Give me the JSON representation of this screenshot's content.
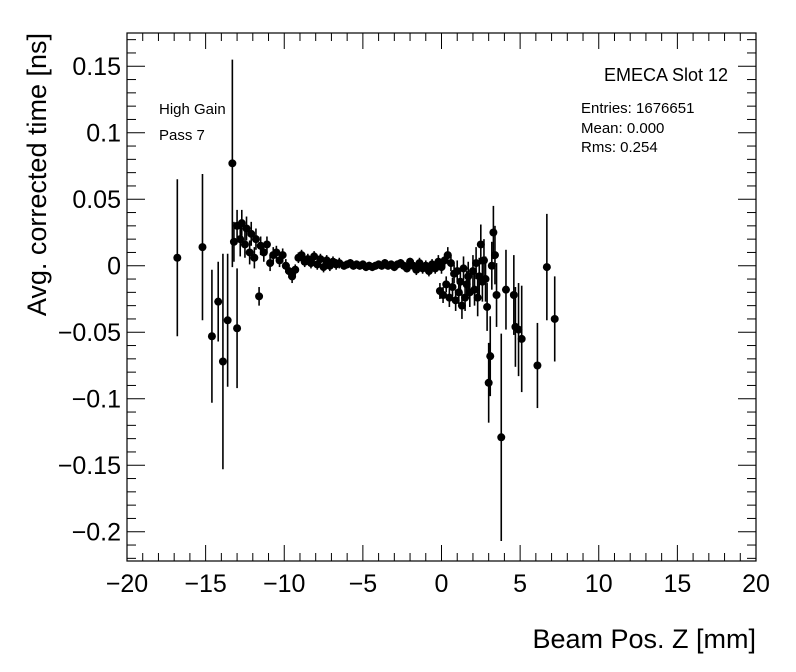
{
  "chart_data": {
    "type": "scatter",
    "title": "EMECA Slot 12",
    "xlabel": "Beam Pos. Z [mm]",
    "ylabel": "Avg. corrected time [ns]",
    "xlim": [
      -20,
      20
    ],
    "ylim": [
      -0.222,
      0.175
    ],
    "x_ticks": [
      -20,
      -15,
      -10,
      -5,
      0,
      5,
      10,
      15,
      20
    ],
    "x_tick_labels": [
      "−20",
      "−15",
      "−10",
      "−5",
      "0",
      "5",
      "10",
      "15",
      "20"
    ],
    "y_ticks": [
      -0.2,
      -0.15,
      -0.1,
      -0.05,
      0,
      0.05,
      0.1,
      0.15
    ],
    "y_tick_labels": [
      "−0.2",
      "−0.15",
      "−0.1",
      "−0.05",
      "0",
      "0.05",
      "0.1",
      "0.15"
    ],
    "grid": false,
    "annotations": [
      "High Gain",
      "Pass 7"
    ],
    "stats": [
      "Entries: 1676651",
      "Mean: 0.000",
      "Rms: 0.254"
    ],
    "points": [
      {
        "x": -16.8,
        "y": 0.006,
        "err": 0.059
      },
      {
        "x": -15.2,
        "y": 0.014,
        "err": 0.055
      },
      {
        "x": -14.6,
        "y": -0.053,
        "err": 0.05
      },
      {
        "x": -14.2,
        "y": -0.027,
        "err": 0.03
      },
      {
        "x": -13.9,
        "y": -0.072,
        "err": 0.081
      },
      {
        "x": -13.6,
        "y": -0.041,
        "err": 0.05
      },
      {
        "x": -13.3,
        "y": 0.077,
        "err": 0.078
      },
      {
        "x": -13.2,
        "y": 0.018,
        "err": 0.015
      },
      {
        "x": -13.0,
        "y": -0.047,
        "err": 0.045
      },
      {
        "x": -13.0,
        "y": 0.03,
        "err": 0.012
      },
      {
        "x": -12.8,
        "y": 0.02,
        "err": 0.013
      },
      {
        "x": -12.7,
        "y": 0.032,
        "err": 0.01
      },
      {
        "x": -12.5,
        "y": 0.016,
        "err": 0.01
      },
      {
        "x": -12.4,
        "y": 0.028,
        "err": 0.009
      },
      {
        "x": -12.2,
        "y": 0.01,
        "err": 0.009
      },
      {
        "x": -12.1,
        "y": 0.024,
        "err": 0.009
      },
      {
        "x": -11.9,
        "y": 0.006,
        "err": 0.008
      },
      {
        "x": -11.8,
        "y": 0.02,
        "err": 0.008
      },
      {
        "x": -11.6,
        "y": -0.023,
        "err": 0.007
      },
      {
        "x": -11.5,
        "y": 0.015,
        "err": 0.007
      },
      {
        "x": -11.3,
        "y": 0.01,
        "err": 0.007
      },
      {
        "x": -11.1,
        "y": 0.016,
        "err": 0.006
      },
      {
        "x": -10.9,
        "y": 0.002,
        "err": 0.006
      },
      {
        "x": -10.7,
        "y": 0.008,
        "err": 0.006
      },
      {
        "x": -10.5,
        "y": 0.01,
        "err": 0.005
      },
      {
        "x": -10.3,
        "y": 0.004,
        "err": 0.005
      },
      {
        "x": -10.1,
        "y": 0.008,
        "err": 0.005
      },
      {
        "x": -9.9,
        "y": 0.0,
        "err": 0.005
      },
      {
        "x": -9.7,
        "y": -0.004,
        "err": 0.005
      },
      {
        "x": -9.5,
        "y": -0.008,
        "err": 0.005
      },
      {
        "x": -9.3,
        "y": -0.003,
        "err": 0.004
      },
      {
        "x": -9.1,
        "y": 0.006,
        "err": 0.004
      },
      {
        "x": -8.9,
        "y": 0.008,
        "err": 0.004
      },
      {
        "x": -8.7,
        "y": 0.003,
        "err": 0.004
      },
      {
        "x": -8.5,
        "y": 0.005,
        "err": 0.004
      },
      {
        "x": -8.3,
        "y": 0.002,
        "err": 0.004
      },
      {
        "x": -8.1,
        "y": 0.007,
        "err": 0.004
      },
      {
        "x": -7.9,
        "y": 0.001,
        "err": 0.004
      },
      {
        "x": -7.7,
        "y": 0.005,
        "err": 0.004
      },
      {
        "x": -7.5,
        "y": -0.001,
        "err": 0.004
      },
      {
        "x": -7.3,
        "y": 0.004,
        "err": 0.004
      },
      {
        "x": -7.1,
        "y": 0.0,
        "err": 0.004
      },
      {
        "x": -6.9,
        "y": 0.003,
        "err": 0.004
      },
      {
        "x": -6.7,
        "y": 0.001,
        "err": 0.004
      },
      {
        "x": -6.5,
        "y": 0.002,
        "err": 0.004
      },
      {
        "x": -6.2,
        "y": 0.0,
        "err": 0.003
      },
      {
        "x": -6.0,
        "y": 0.001,
        "err": 0.003
      },
      {
        "x": -5.8,
        "y": 0.002,
        "err": 0.003
      },
      {
        "x": -5.6,
        "y": 0.0,
        "err": 0.003
      },
      {
        "x": -5.4,
        "y": 0.001,
        "err": 0.003
      },
      {
        "x": -5.2,
        "y": 0.0,
        "err": 0.003
      },
      {
        "x": -5.0,
        "y": 0.001,
        "err": 0.003
      },
      {
        "x": -4.8,
        "y": -0.001,
        "err": 0.003
      },
      {
        "x": -4.6,
        "y": 0.0,
        "err": 0.003
      },
      {
        "x": -4.4,
        "y": -0.001,
        "err": 0.003
      },
      {
        "x": -4.2,
        "y": 0.0,
        "err": 0.003
      },
      {
        "x": -4.0,
        "y": 0.001,
        "err": 0.003
      },
      {
        "x": -3.8,
        "y": 0.0,
        "err": 0.003
      },
      {
        "x": -3.6,
        "y": 0.002,
        "err": 0.003
      },
      {
        "x": -3.4,
        "y": 0.0,
        "err": 0.003
      },
      {
        "x": -3.2,
        "y": 0.001,
        "err": 0.003
      },
      {
        "x": -3.0,
        "y": -0.001,
        "err": 0.003
      },
      {
        "x": -2.8,
        "y": 0.001,
        "err": 0.003
      },
      {
        "x": -2.6,
        "y": 0.002,
        "err": 0.003
      },
      {
        "x": -2.4,
        "y": 0.0,
        "err": 0.003
      },
      {
        "x": -2.2,
        "y": -0.002,
        "err": 0.003
      },
      {
        "x": -2.0,
        "y": 0.003,
        "err": 0.003
      },
      {
        "x": -1.8,
        "y": 0.0,
        "err": 0.004
      },
      {
        "x": -1.6,
        "y": -0.003,
        "err": 0.004
      },
      {
        "x": -1.4,
        "y": 0.002,
        "err": 0.004
      },
      {
        "x": -1.2,
        "y": -0.002,
        "err": 0.004
      },
      {
        "x": -1.0,
        "y": 0.0,
        "err": 0.004
      },
      {
        "x": -0.8,
        "y": -0.004,
        "err": 0.004
      },
      {
        "x": -0.6,
        "y": 0.001,
        "err": 0.004
      },
      {
        "x": -0.4,
        "y": -0.002,
        "err": 0.004
      },
      {
        "x": -0.2,
        "y": 0.003,
        "err": 0.005
      },
      {
        "x": 0.0,
        "y": -0.001,
        "err": 0.005
      },
      {
        "x": -0.1,
        "y": -0.019,
        "err": 0.006
      },
      {
        "x": 0.1,
        "y": -0.022,
        "err": 0.006
      },
      {
        "x": 0.3,
        "y": -0.014,
        "err": 0.006
      },
      {
        "x": 0.2,
        "y": 0.004,
        "err": 0.005
      },
      {
        "x": 0.4,
        "y": 0.008,
        "err": 0.006
      },
      {
        "x": 0.5,
        "y": -0.024,
        "err": 0.007
      },
      {
        "x": 0.6,
        "y": 0.002,
        "err": 0.006
      },
      {
        "x": 0.7,
        "y": -0.016,
        "err": 0.007
      },
      {
        "x": 0.8,
        "y": -0.006,
        "err": 0.007
      },
      {
        "x": 0.9,
        "y": -0.026,
        "err": 0.008
      },
      {
        "x": 1.0,
        "y": -0.004,
        "err": 0.008
      },
      {
        "x": 1.1,
        "y": -0.02,
        "err": 0.009
      },
      {
        "x": 1.2,
        "y": -0.012,
        "err": 0.009
      },
      {
        "x": 1.3,
        "y": -0.03,
        "err": 0.01
      },
      {
        "x": 1.4,
        "y": -0.002,
        "err": 0.009
      },
      {
        "x": 1.5,
        "y": -0.024,
        "err": 0.01
      },
      {
        "x": 1.6,
        "y": -0.014,
        "err": 0.01
      },
      {
        "x": 1.7,
        "y": -0.008,
        "err": 0.011
      },
      {
        "x": 1.8,
        "y": -0.02,
        "err": 0.011
      },
      {
        "x": 2.0,
        "y": -0.004,
        "err": 0.012
      },
      {
        "x": 2.1,
        "y": -0.018,
        "err": 0.012
      },
      {
        "x": 2.2,
        "y": 0.002,
        "err": 0.012
      },
      {
        "x": 2.3,
        "y": -0.024,
        "err": 0.014
      },
      {
        "x": 2.4,
        "y": -0.008,
        "err": 0.014
      },
      {
        "x": 2.5,
        "y": 0.016,
        "err": 0.015
      },
      {
        "x": 2.6,
        "y": -0.012,
        "err": 0.015
      },
      {
        "x": 2.7,
        "y": 0.004,
        "err": 0.016
      },
      {
        "x": 2.8,
        "y": -0.01,
        "err": 0.017
      },
      {
        "x": 2.9,
        "y": -0.031,
        "err": 0.018
      },
      {
        "x": 3.0,
        "y": -0.088,
        "err": 0.03
      },
      {
        "x": 3.1,
        "y": -0.068,
        "err": 0.03
      },
      {
        "x": 3.2,
        "y": 0.0,
        "err": 0.018
      },
      {
        "x": 3.3,
        "y": 0.025,
        "err": 0.02
      },
      {
        "x": 3.4,
        "y": 0.008,
        "err": 0.022
      },
      {
        "x": 3.5,
        "y": -0.022,
        "err": 0.024
      },
      {
        "x": 3.8,
        "y": -0.129,
        "err": 0.078
      },
      {
        "x": 4.1,
        "y": -0.018,
        "err": 0.03
      },
      {
        "x": 4.6,
        "y": -0.022,
        "err": 0.03
      },
      {
        "x": 4.7,
        "y": -0.046,
        "err": 0.03
      },
      {
        "x": 4.9,
        "y": -0.048,
        "err": 0.035
      },
      {
        "x": 5.1,
        "y": -0.055,
        "err": 0.04
      },
      {
        "x": 6.1,
        "y": -0.075,
        "err": 0.032
      },
      {
        "x": 6.7,
        "y": -0.001,
        "err": 0.04
      },
      {
        "x": 7.2,
        "y": -0.04,
        "err": 0.032
      }
    ]
  }
}
